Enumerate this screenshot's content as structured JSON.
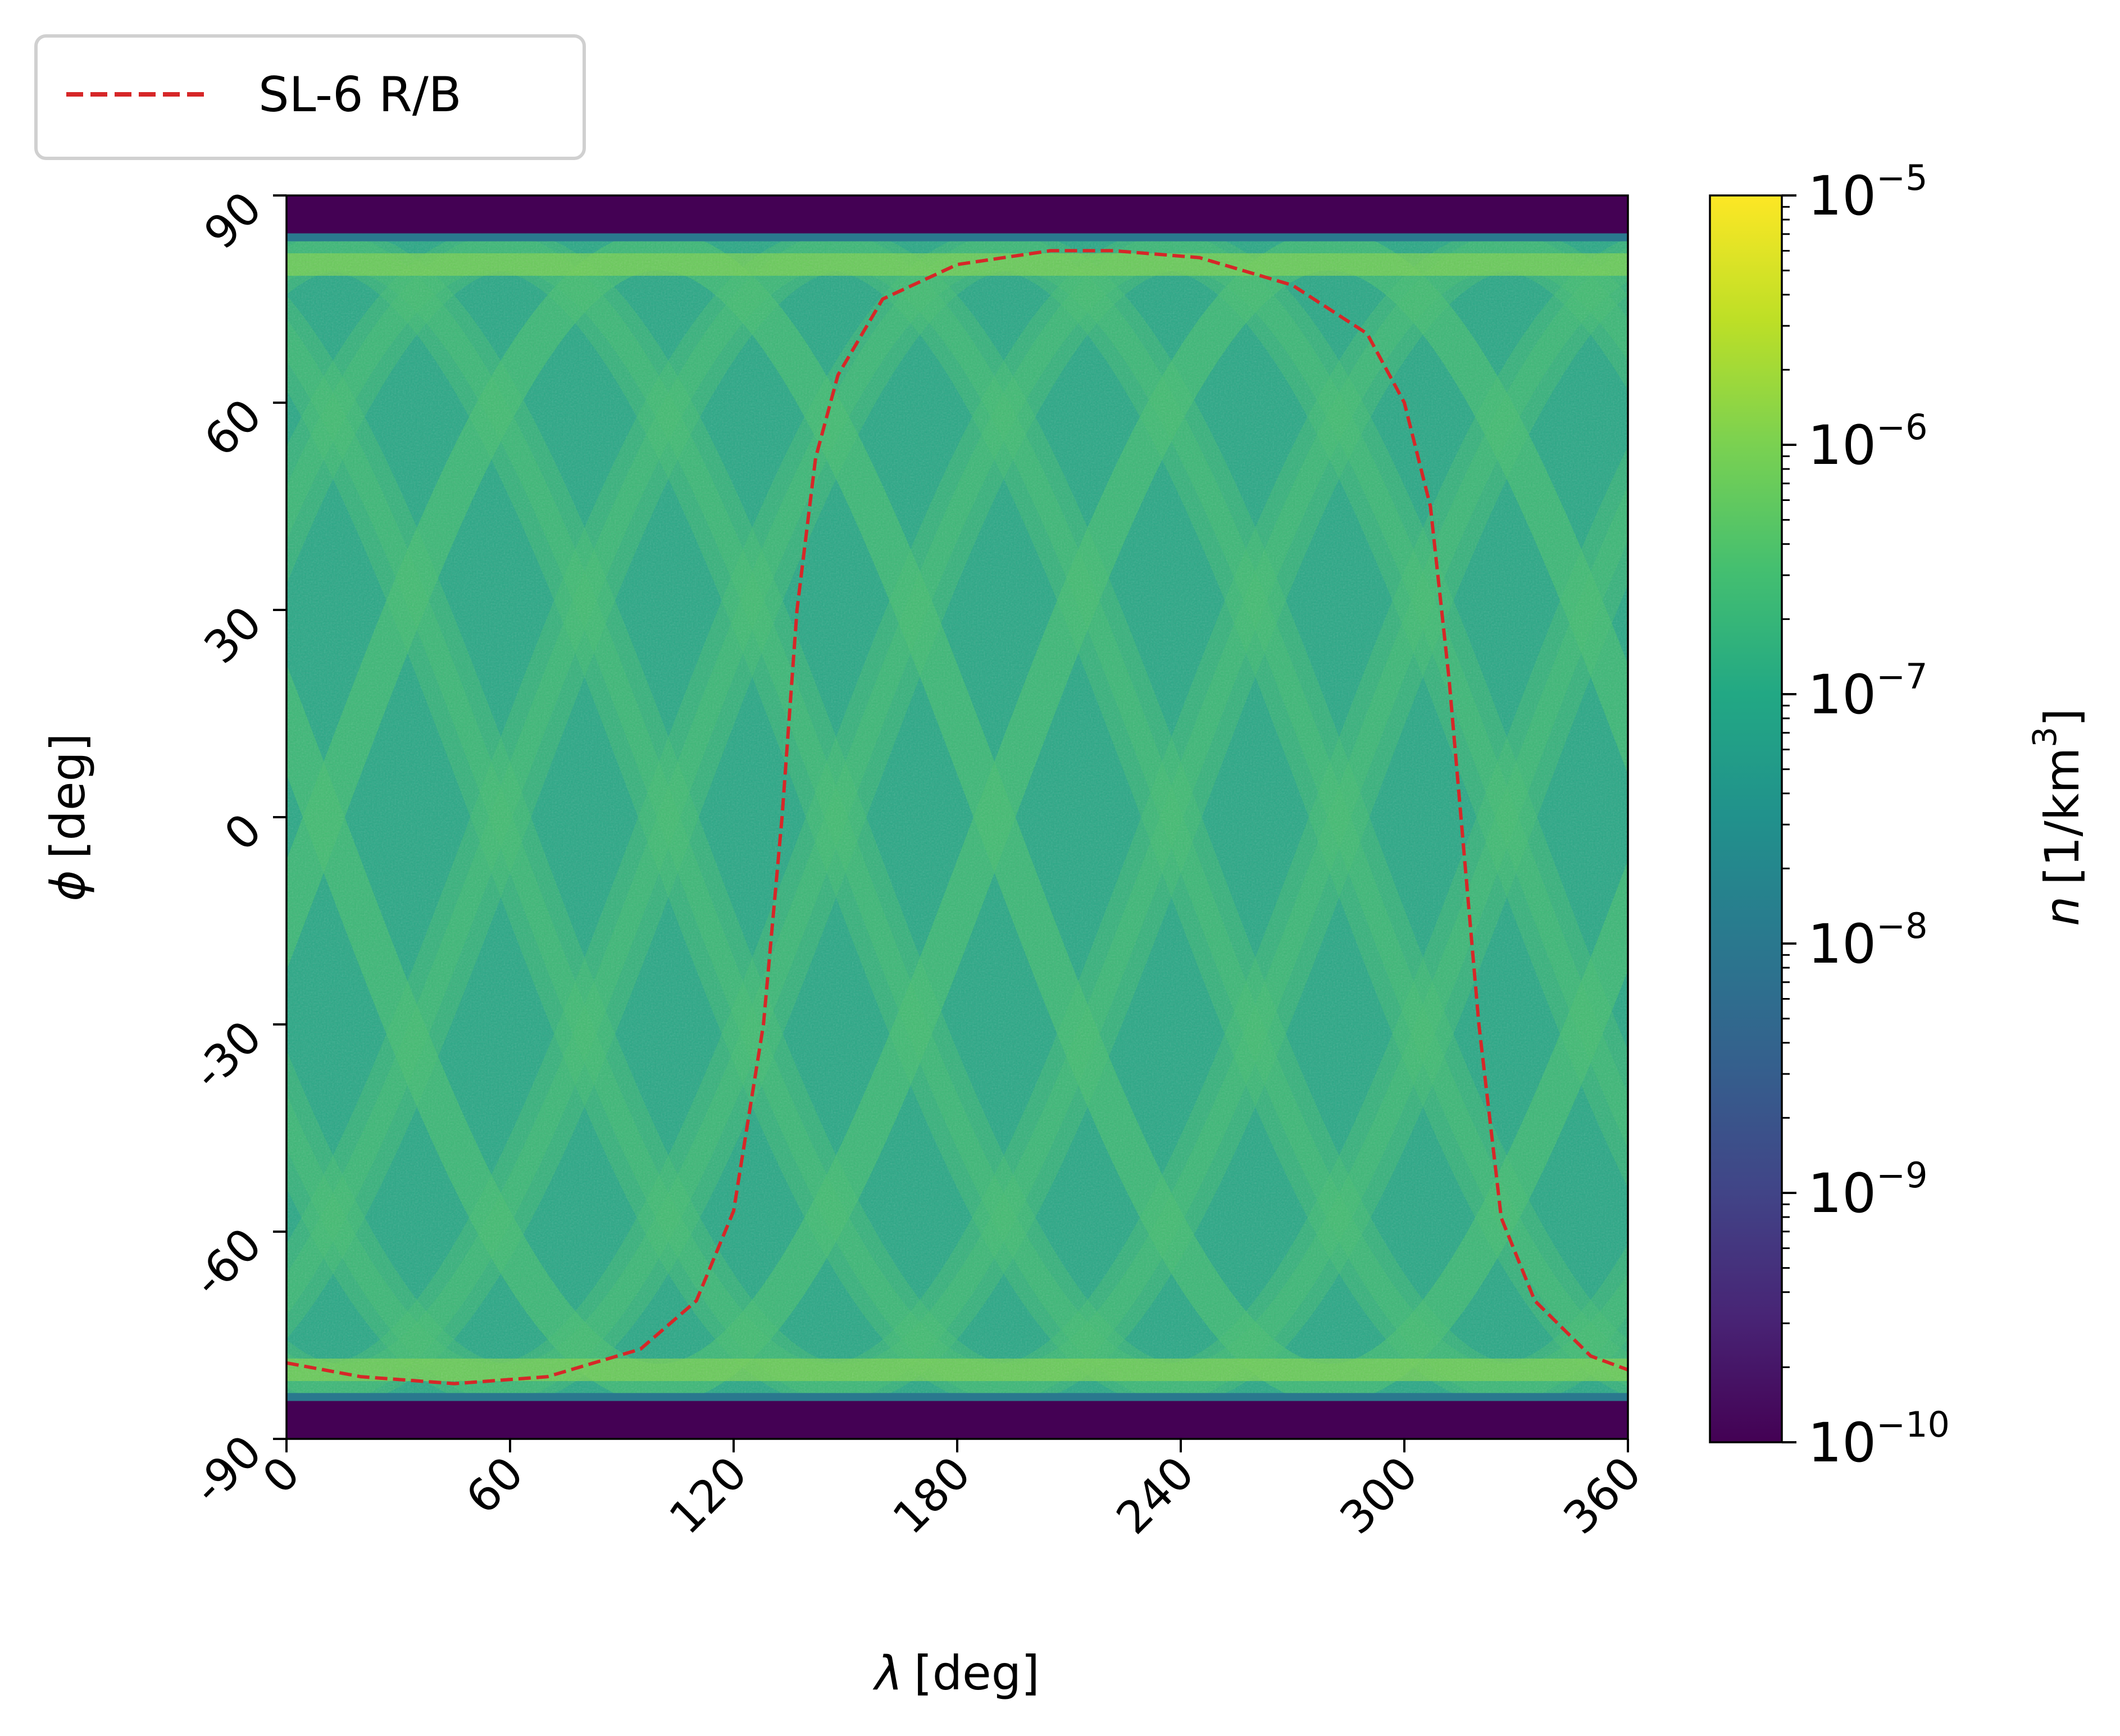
{
  "chart_data": {
    "type": "heatmap",
    "title": "",
    "xlabel": {
      "symbol": "λ",
      "unit": "[deg]"
    },
    "ylabel": {
      "symbol": "ϕ",
      "unit": "[deg]"
    },
    "xlim": [
      0,
      360
    ],
    "ylim": [
      -90,
      90
    ],
    "xticks": [
      0,
      60,
      120,
      180,
      240,
      300,
      360
    ],
    "yticks": [
      -90,
      -60,
      -30,
      0,
      30,
      60,
      90
    ],
    "xtick_labels": [
      "0",
      "60",
      "120",
      "180",
      "240",
      "300",
      "360"
    ],
    "ytick_labels": [
      "-90",
      "-60",
      "-30",
      "0",
      "30",
      "60",
      "90"
    ],
    "grid": false,
    "colormap": "viridis",
    "colorbar": {
      "label": {
        "symbol": "n",
        "unit_prefix": "[1/km",
        "unit_exp": "3",
        "unit_suffix": "]"
      },
      "scale": "log",
      "range": [
        1e-10,
        1e-05
      ],
      "ticks": [
        {
          "base": "10",
          "exp": "−10",
          "value": 1e-10
        },
        {
          "base": "10",
          "exp": "−9",
          "value": 1e-09
        },
        {
          "base": "10",
          "exp": "−8",
          "value": 1e-08
        },
        {
          "base": "10",
          "exp": "−7",
          "value": 1e-07
        },
        {
          "base": "10",
          "exp": "−6",
          "value": 1e-06
        },
        {
          "base": "10",
          "exp": "−5",
          "value": 1e-05
        }
      ]
    },
    "heatmap": {
      "description_source": "visual estimate",
      "inclination_limit_deg": 82,
      "background_density": 1.2e-07,
      "band_density": 5e-07,
      "empty_density": 1e-10
    },
    "legend": {
      "placement": "top-left-outside",
      "entries": [
        {
          "label": "SL-6 R/B",
          "color": "#d62728",
          "style": "dashed"
        }
      ]
    },
    "series": [
      {
        "name": "SL-6 R/B",
        "color": "#d62728",
        "style": "dashed",
        "x": [
          0,
          20,
          45,
          70,
          95,
          110,
          120,
          128,
          133,
          137,
          142,
          148,
          160,
          180,
          205,
          222,
          245,
          270,
          290,
          300,
          307,
          312,
          316,
          320,
          326,
          335,
          350,
          360
        ],
        "y": [
          -79,
          -81,
          -82,
          -81,
          -77,
          -70,
          -57,
          -30,
          0,
          30,
          52,
          64,
          75,
          80,
          82,
          82,
          81,
          77,
          70,
          60,
          45,
          20,
          -5,
          -30,
          -58,
          -70,
          -78,
          -80
        ]
      }
    ]
  }
}
